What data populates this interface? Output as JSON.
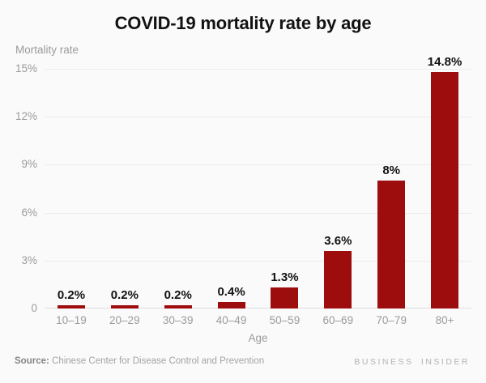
{
  "chart_data": {
    "type": "bar",
    "title": "COVID-19 mortality rate by age",
    "ylabel": "Mortality rate",
    "xlabel": "Age",
    "categories": [
      "10–19",
      "20–29",
      "30–39",
      "40–49",
      "50–59",
      "60–69",
      "70–79",
      "80+"
    ],
    "values": [
      0.2,
      0.2,
      0.2,
      0.4,
      1.3,
      3.6,
      8,
      14.8
    ],
    "value_labels": [
      "0.2%",
      "0.2%",
      "0.2%",
      "0.4%",
      "1.3%",
      "3.6%",
      "8%",
      "14.8%"
    ],
    "ylim": [
      0,
      15
    ],
    "yticks": [
      0,
      3,
      6,
      9,
      12,
      15
    ],
    "ytick_labels": [
      "0",
      "3%",
      "6%",
      "9%",
      "12%",
      "15%"
    ],
    "grid": true,
    "legend_position": "none",
    "bar_color": "#9d0d0e"
  },
  "colors": {
    "background": "#fafafa",
    "bar": "#9d0d0e",
    "grid_line": "#ececec",
    "axis_line": "#dedede",
    "tick_text": "#9b9b9b",
    "title_text": "#121212",
    "value_label_text": "#121212",
    "source_prefix_text": "#858585",
    "source_text": "#a3a3a3",
    "brand_text": "#b3b3b3"
  },
  "footer": {
    "source_prefix": "Source:",
    "source_text": "Chinese Center for Disease Control and Prevention",
    "brand": "BUSINESS INSIDER"
  }
}
